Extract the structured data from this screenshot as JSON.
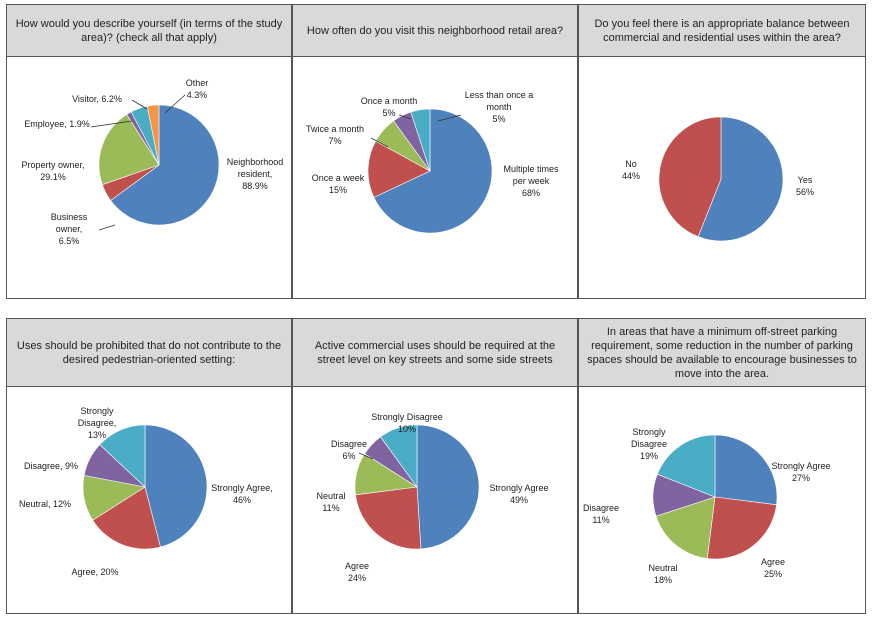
{
  "colors": {
    "blue": "#4f81bd",
    "red": "#c0504d",
    "green": "#9bbb59",
    "purple": "#8064a2",
    "aqua": "#4bacc6",
    "orange": "#f79646"
  },
  "chart_data": [
    {
      "type": "pie",
      "title": "How would you describe yourself (in terms of the study area)? (check all that apply)",
      "slices": [
        {
          "label": "Neighborhood resident, 88.9%",
          "value": 88.9,
          "color": "#4f81bd"
        },
        {
          "label": "Business owner, 6.5%",
          "value": 6.5,
          "color": "#c0504d"
        },
        {
          "label": "Property owner, 29.1%",
          "value": 29.1,
          "color": "#9bbb59"
        },
        {
          "label": "Employee, 1.9%",
          "value": 1.9,
          "color": "#8064a2"
        },
        {
          "label": "Visitor, 6.2%",
          "value": 6.2,
          "color": "#4bacc6"
        },
        {
          "label": "Other 4.3%",
          "value": 4.3,
          "color": "#f79646"
        }
      ]
    },
    {
      "type": "pie",
      "title": "How often do you visit this neighborhood retail area?",
      "slices": [
        {
          "label": "Multiple times per week 68%",
          "value": 68,
          "color": "#4f81bd"
        },
        {
          "label": "Once a week 15%",
          "value": 15,
          "color": "#c0504d"
        },
        {
          "label": "Twice a month 7%",
          "value": 7,
          "color": "#9bbb59"
        },
        {
          "label": "Once a month 5%",
          "value": 5,
          "color": "#8064a2"
        },
        {
          "label": "Less than once a month 5%",
          "value": 5,
          "color": "#4bacc6"
        }
      ]
    },
    {
      "type": "pie",
      "title": "Do you feel there is an appropriate balance between commercial and residential uses within the area?",
      "slices": [
        {
          "label": "Yes 56%",
          "value": 56,
          "color": "#4f81bd"
        },
        {
          "label": "No 44%",
          "value": 44,
          "color": "#c0504d"
        }
      ]
    },
    {
      "type": "pie",
      "title": "Uses should be prohibited that do not contribute to the desired pedestrian-oriented setting:",
      "slices": [
        {
          "label": "Strongly Agree, 46%",
          "value": 46,
          "color": "#4f81bd"
        },
        {
          "label": "Agree, 20%",
          "value": 20,
          "color": "#c0504d"
        },
        {
          "label": "Neutral, 12%",
          "value": 12,
          "color": "#9bbb59"
        },
        {
          "label": "Disagree, 9%",
          "value": 9,
          "color": "#8064a2"
        },
        {
          "label": "Strongly Disagree, 13%",
          "value": 13,
          "color": "#4bacc6"
        }
      ]
    },
    {
      "type": "pie",
      "title": "Active commercial uses should be required at the street level on key streets and some side streets",
      "slices": [
        {
          "label": "Strongly Agree 49%",
          "value": 49,
          "color": "#4f81bd"
        },
        {
          "label": "Agree 24%",
          "value": 24,
          "color": "#c0504d"
        },
        {
          "label": "Neutral 11%",
          "value": 11,
          "color": "#9bbb59"
        },
        {
          "label": "Disagree 6%",
          "value": 6,
          "color": "#8064a2"
        },
        {
          "label": "Strongly Disagree 10%",
          "value": 10,
          "color": "#4bacc6"
        }
      ]
    },
    {
      "type": "pie",
      "title": "In areas that have a minimum off-street parking requirement, some reduction in the number of parking spaces should be available to encourage businesses to move into the area.",
      "slices": [
        {
          "label": "Strongly Agree 27%",
          "value": 27,
          "color": "#4f81bd"
        },
        {
          "label": "Agree 25%",
          "value": 25,
          "color": "#c0504d"
        },
        {
          "label": "Neutral 18%",
          "value": 18,
          "color": "#9bbb59"
        },
        {
          "label": "Disagree 11%",
          "value": 11,
          "color": "#8064a2"
        },
        {
          "label": "Strongly Disagree 19%",
          "value": 19,
          "color": "#4bacc6"
        }
      ]
    }
  ]
}
